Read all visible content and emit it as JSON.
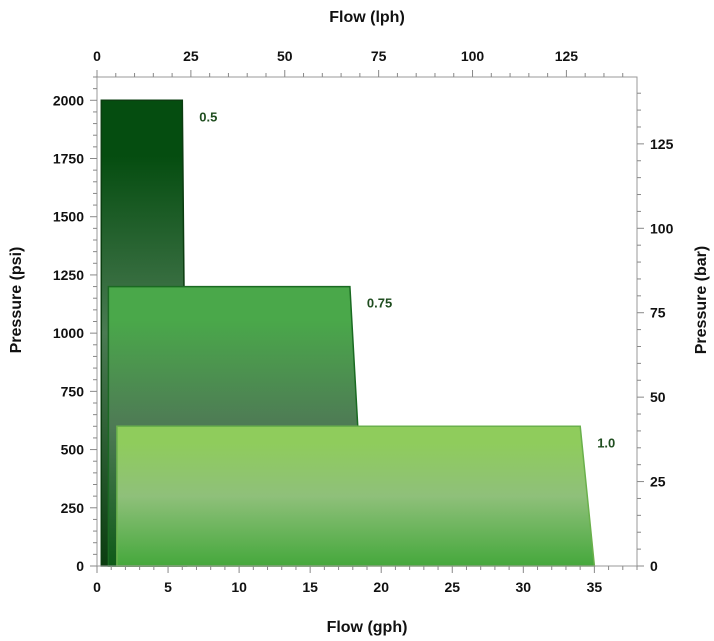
{
  "chart_data": {
    "type": "area",
    "x_bottom": {
      "label": "Flow (gph)",
      "range": [
        0,
        38
      ],
      "ticks": [
        0,
        5,
        10,
        15,
        20,
        25,
        30,
        35
      ]
    },
    "x_top": {
      "label": "Flow (lph)",
      "range": [
        0,
        143.8
      ],
      "ticks": [
        0,
        25,
        50,
        75,
        100,
        125
      ]
    },
    "y_left": {
      "label": "Pressure (psi)",
      "range": [
        0,
        2100
      ],
      "ticks": [
        0,
        250,
        500,
        750,
        1000,
        1250,
        1500,
        1750,
        2000
      ]
    },
    "y_right": {
      "label": "Pressure (bar)",
      "range": [
        0,
        144.8
      ],
      "ticks": [
        0,
        25,
        50,
        75,
        100,
        125
      ]
    },
    "series": [
      {
        "name": "0.5",
        "polygon_gph_psi": [
          [
            0.3,
            0
          ],
          [
            0.3,
            2000
          ],
          [
            6.0,
            2000
          ],
          [
            6.3,
            0
          ]
        ],
        "top_color": "#054d10",
        "mid_color": "#4a7a52",
        "bottom_color": "#0b3d10",
        "border_color": "#0b3d10"
      },
      {
        "name": "0.75",
        "polygon_gph_psi": [
          [
            0.8,
            0
          ],
          [
            0.8,
            1200
          ],
          [
            17.8,
            1200
          ],
          [
            18.9,
            0
          ]
        ],
        "top_color": "#4aa84a",
        "mid_color": "#4e7a55",
        "bottom_color": "#0e5a18",
        "border_color": "#1a6a22"
      },
      {
        "name": "1.0",
        "polygon_gph_psi": [
          [
            1.4,
            0
          ],
          [
            1.4,
            600
          ],
          [
            34.0,
            600
          ],
          [
            35.0,
            0
          ]
        ],
        "top_color": "#8fcc5c",
        "mid_color": "#8fc07a",
        "bottom_color": "#45a83c",
        "border_color": "#6ab04c"
      }
    ]
  }
}
